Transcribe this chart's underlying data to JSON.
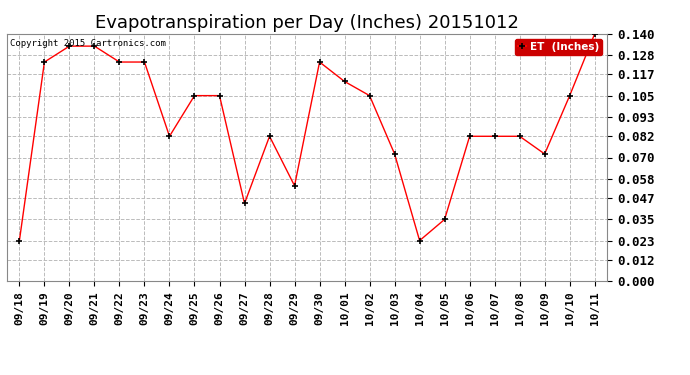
{
  "title": "Evapotranspiration per Day (Inches) 20151012",
  "copyright_text": "Copyright 2015 Cartronics.com",
  "legend_label": "ET  (Inches)",
  "x_labels": [
    "09/18",
    "09/19",
    "09/20",
    "09/21",
    "09/22",
    "09/23",
    "09/24",
    "09/25",
    "09/26",
    "09/27",
    "09/28",
    "09/29",
    "09/30",
    "10/01",
    "10/02",
    "10/03",
    "10/04",
    "10/05",
    "10/06",
    "10/07",
    "10/08",
    "10/09",
    "10/10",
    "10/11"
  ],
  "y_values": [
    0.023,
    0.124,
    0.133,
    0.133,
    0.124,
    0.124,
    0.082,
    0.105,
    0.105,
    0.044,
    0.082,
    0.054,
    0.124,
    0.113,
    0.105,
    0.072,
    0.023,
    0.035,
    0.082,
    0.082,
    0.082,
    0.072,
    0.105,
    0.14
  ],
  "line_color": "red",
  "marker_color": "black",
  "marker": "+",
  "ylim": [
    0.0,
    0.14
  ],
  "yticks": [
    0.0,
    0.012,
    0.023,
    0.035,
    0.047,
    0.058,
    0.07,
    0.082,
    0.093,
    0.105,
    0.117,
    0.128,
    0.14
  ],
  "grid_color": "#bbbbbb",
  "background_color": "#ffffff",
  "title_fontsize": 13,
  "tick_fontsize": 8,
  "legend_bg": "#cc0000",
  "legend_text_color": "white",
  "border_color": "#888888"
}
